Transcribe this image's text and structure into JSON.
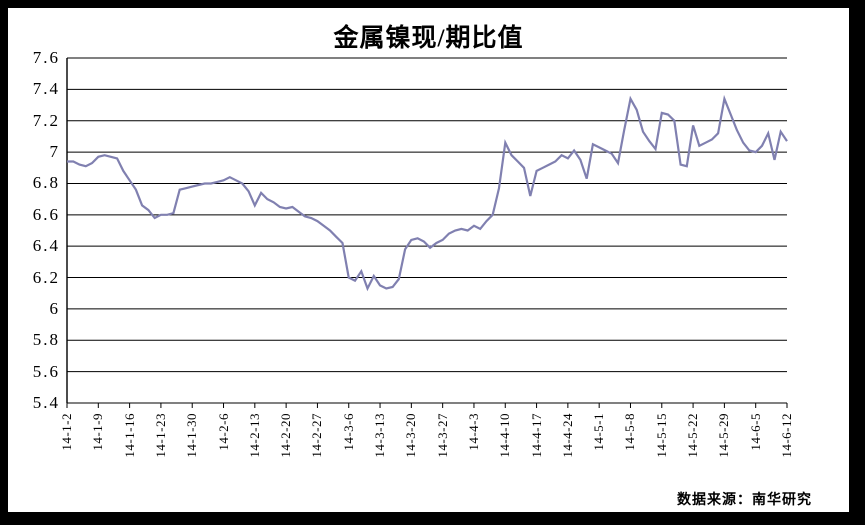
{
  "frame": {
    "background_color": "#000000",
    "canvas_color": "#ffffff"
  },
  "source_note": "数据来源：南华研究",
  "chart_data": {
    "type": "line",
    "title": "金属镍现/期比值",
    "line_color": "#8080b0",
    "grid_color": "#000000",
    "grid": "horizontal",
    "legend_position": "none",
    "ylim": [
      5.4,
      7.6
    ],
    "y_tick_labels": [
      "7.6",
      "7.4",
      "7.2",
      "7",
      "6.8",
      "6.6",
      "6.4",
      "6.2",
      "6",
      "5.8",
      "5.6",
      "5.4"
    ],
    "x_tick_labels": [
      "14-1-2",
      "14-1-9",
      "14-1-16",
      "14-1-23",
      "14-1-30",
      "14-2-6",
      "14-2-13",
      "14-2-20",
      "14-2-27",
      "14-3-6",
      "14-3-13",
      "14-3-20",
      "14-3-27",
      "14-4-3",
      "14-4-10",
      "14-4-17",
      "14-4-24",
      "14-5-1",
      "14-5-8",
      "14-5-15",
      "14-5-22",
      "14-5-29",
      "14-6-5",
      "14-6-12"
    ],
    "points_per_label": 5,
    "values": [
      6.94,
      6.94,
      6.92,
      6.91,
      6.93,
      6.97,
      6.98,
      6.97,
      6.96,
      6.88,
      6.82,
      6.76,
      6.66,
      6.63,
      6.58,
      6.6,
      6.6,
      6.61,
      6.76,
      6.77,
      6.78,
      6.79,
      6.8,
      6.8,
      6.81,
      6.82,
      6.84,
      6.82,
      6.8,
      6.75,
      6.66,
      6.74,
      6.7,
      6.68,
      6.65,
      6.64,
      6.65,
      6.62,
      6.59,
      6.58,
      6.56,
      6.53,
      6.5,
      6.46,
      6.42,
      6.2,
      6.18,
      6.24,
      6.13,
      6.21,
      6.15,
      6.13,
      6.14,
      6.19,
      6.38,
      6.44,
      6.45,
      6.43,
      6.39,
      6.42,
      6.44,
      6.48,
      6.5,
      6.51,
      6.5,
      6.53,
      6.51,
      6.56,
      6.6,
      6.77,
      7.06,
      6.98,
      6.94,
      6.9,
      6.72,
      6.88,
      6.9,
      6.92,
      6.94,
      6.98,
      6.96,
      7.01,
      6.95,
      6.83,
      7.05,
      7.03,
      7.01,
      6.99,
      6.93,
      7.14,
      7.34,
      7.27,
      7.13,
      7.07,
      7.02,
      7.25,
      7.24,
      7.2,
      6.92,
      6.91,
      7.17,
      7.04,
      7.06,
      7.08,
      7.12,
      7.34,
      7.24,
      7.14,
      7.06,
      7.01,
      7.0,
      7.04,
      7.12,
      6.95,
      7.13,
      7.07
    ]
  }
}
